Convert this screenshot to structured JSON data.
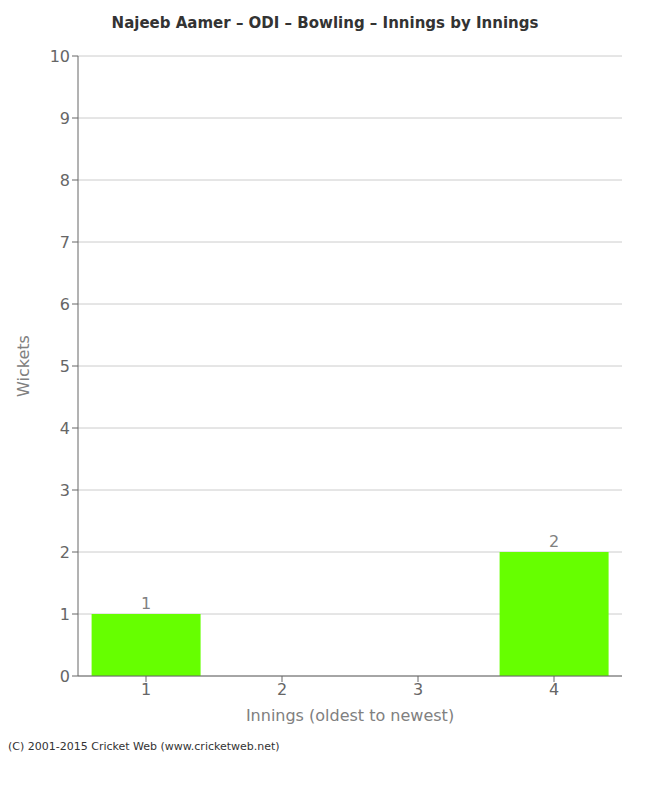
{
  "chart_data": {
    "type": "bar",
    "title": "Najeeb Aamer – ODI – Bowling – Innings by Innings",
    "xlabel": "Innings (oldest to newest)",
    "ylabel": "Wickets",
    "categories": [
      "1",
      "2",
      "3",
      "4"
    ],
    "values": [
      1,
      0,
      0,
      2
    ],
    "color": "#66ff00",
    "ylim": [
      0,
      10
    ],
    "yticks": [
      0,
      1,
      2,
      3,
      4,
      5,
      6,
      7,
      8,
      9,
      10
    ],
    "grid": true,
    "data_labels": true,
    "annotations": [
      "(C) 2001-2015 Cricket Web (www.cricketweb.net)"
    ]
  }
}
